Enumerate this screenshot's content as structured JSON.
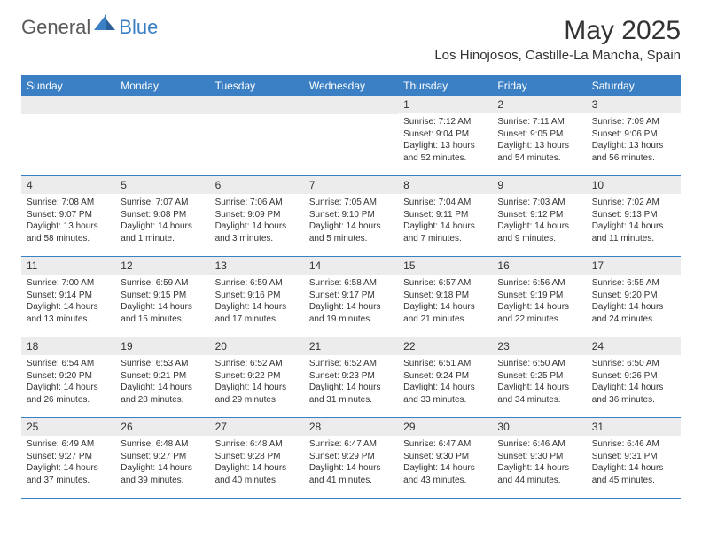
{
  "brand": {
    "part1": "General",
    "part2": "Blue"
  },
  "title": "May 2025",
  "location": "Los Hinojosos, Castille-La Mancha, Spain",
  "colors": {
    "header_blue": "#3b7fc4",
    "cell_gray": "#ececec",
    "text": "#333333",
    "logo_gray": "#5a5a5a"
  },
  "weekdays": [
    "Sunday",
    "Monday",
    "Tuesday",
    "Wednesday",
    "Thursday",
    "Friday",
    "Saturday"
  ],
  "weeks": [
    [
      null,
      null,
      null,
      null,
      {
        "n": "1",
        "sunrise": "7:12 AM",
        "sunset": "9:04 PM",
        "dl1": "Daylight: 13 hours",
        "dl2": "and 52 minutes."
      },
      {
        "n": "2",
        "sunrise": "7:11 AM",
        "sunset": "9:05 PM",
        "dl1": "Daylight: 13 hours",
        "dl2": "and 54 minutes."
      },
      {
        "n": "3",
        "sunrise": "7:09 AM",
        "sunset": "9:06 PM",
        "dl1": "Daylight: 13 hours",
        "dl2": "and 56 minutes."
      }
    ],
    [
      {
        "n": "4",
        "sunrise": "7:08 AM",
        "sunset": "9:07 PM",
        "dl1": "Daylight: 13 hours",
        "dl2": "and 58 minutes."
      },
      {
        "n": "5",
        "sunrise": "7:07 AM",
        "sunset": "9:08 PM",
        "dl1": "Daylight: 14 hours",
        "dl2": "and 1 minute."
      },
      {
        "n": "6",
        "sunrise": "7:06 AM",
        "sunset": "9:09 PM",
        "dl1": "Daylight: 14 hours",
        "dl2": "and 3 minutes."
      },
      {
        "n": "7",
        "sunrise": "7:05 AM",
        "sunset": "9:10 PM",
        "dl1": "Daylight: 14 hours",
        "dl2": "and 5 minutes."
      },
      {
        "n": "8",
        "sunrise": "7:04 AM",
        "sunset": "9:11 PM",
        "dl1": "Daylight: 14 hours",
        "dl2": "and 7 minutes."
      },
      {
        "n": "9",
        "sunrise": "7:03 AM",
        "sunset": "9:12 PM",
        "dl1": "Daylight: 14 hours",
        "dl2": "and 9 minutes."
      },
      {
        "n": "10",
        "sunrise": "7:02 AM",
        "sunset": "9:13 PM",
        "dl1": "Daylight: 14 hours",
        "dl2": "and 11 minutes."
      }
    ],
    [
      {
        "n": "11",
        "sunrise": "7:00 AM",
        "sunset": "9:14 PM",
        "dl1": "Daylight: 14 hours",
        "dl2": "and 13 minutes."
      },
      {
        "n": "12",
        "sunrise": "6:59 AM",
        "sunset": "9:15 PM",
        "dl1": "Daylight: 14 hours",
        "dl2": "and 15 minutes."
      },
      {
        "n": "13",
        "sunrise": "6:59 AM",
        "sunset": "9:16 PM",
        "dl1": "Daylight: 14 hours",
        "dl2": "and 17 minutes."
      },
      {
        "n": "14",
        "sunrise": "6:58 AM",
        "sunset": "9:17 PM",
        "dl1": "Daylight: 14 hours",
        "dl2": "and 19 minutes."
      },
      {
        "n": "15",
        "sunrise": "6:57 AM",
        "sunset": "9:18 PM",
        "dl1": "Daylight: 14 hours",
        "dl2": "and 21 minutes."
      },
      {
        "n": "16",
        "sunrise": "6:56 AM",
        "sunset": "9:19 PM",
        "dl1": "Daylight: 14 hours",
        "dl2": "and 22 minutes."
      },
      {
        "n": "17",
        "sunrise": "6:55 AM",
        "sunset": "9:20 PM",
        "dl1": "Daylight: 14 hours",
        "dl2": "and 24 minutes."
      }
    ],
    [
      {
        "n": "18",
        "sunrise": "6:54 AM",
        "sunset": "9:20 PM",
        "dl1": "Daylight: 14 hours",
        "dl2": "and 26 minutes."
      },
      {
        "n": "19",
        "sunrise": "6:53 AM",
        "sunset": "9:21 PM",
        "dl1": "Daylight: 14 hours",
        "dl2": "and 28 minutes."
      },
      {
        "n": "20",
        "sunrise": "6:52 AM",
        "sunset": "9:22 PM",
        "dl1": "Daylight: 14 hours",
        "dl2": "and 29 minutes."
      },
      {
        "n": "21",
        "sunrise": "6:52 AM",
        "sunset": "9:23 PM",
        "dl1": "Daylight: 14 hours",
        "dl2": "and 31 minutes."
      },
      {
        "n": "22",
        "sunrise": "6:51 AM",
        "sunset": "9:24 PM",
        "dl1": "Daylight: 14 hours",
        "dl2": "and 33 minutes."
      },
      {
        "n": "23",
        "sunrise": "6:50 AM",
        "sunset": "9:25 PM",
        "dl1": "Daylight: 14 hours",
        "dl2": "and 34 minutes."
      },
      {
        "n": "24",
        "sunrise": "6:50 AM",
        "sunset": "9:26 PM",
        "dl1": "Daylight: 14 hours",
        "dl2": "and 36 minutes."
      }
    ],
    [
      {
        "n": "25",
        "sunrise": "6:49 AM",
        "sunset": "9:27 PM",
        "dl1": "Daylight: 14 hours",
        "dl2": "and 37 minutes."
      },
      {
        "n": "26",
        "sunrise": "6:48 AM",
        "sunset": "9:27 PM",
        "dl1": "Daylight: 14 hours",
        "dl2": "and 39 minutes."
      },
      {
        "n": "27",
        "sunrise": "6:48 AM",
        "sunset": "9:28 PM",
        "dl1": "Daylight: 14 hours",
        "dl2": "and 40 minutes."
      },
      {
        "n": "28",
        "sunrise": "6:47 AM",
        "sunset": "9:29 PM",
        "dl1": "Daylight: 14 hours",
        "dl2": "and 41 minutes."
      },
      {
        "n": "29",
        "sunrise": "6:47 AM",
        "sunset": "9:30 PM",
        "dl1": "Daylight: 14 hours",
        "dl2": "and 43 minutes."
      },
      {
        "n": "30",
        "sunrise": "6:46 AM",
        "sunset": "9:30 PM",
        "dl1": "Daylight: 14 hours",
        "dl2": "and 44 minutes."
      },
      {
        "n": "31",
        "sunrise": "6:46 AM",
        "sunset": "9:31 PM",
        "dl1": "Daylight: 14 hours",
        "dl2": "and 45 minutes."
      }
    ]
  ],
  "labels": {
    "sunrise_prefix": "Sunrise: ",
    "sunset_prefix": "Sunset: "
  }
}
